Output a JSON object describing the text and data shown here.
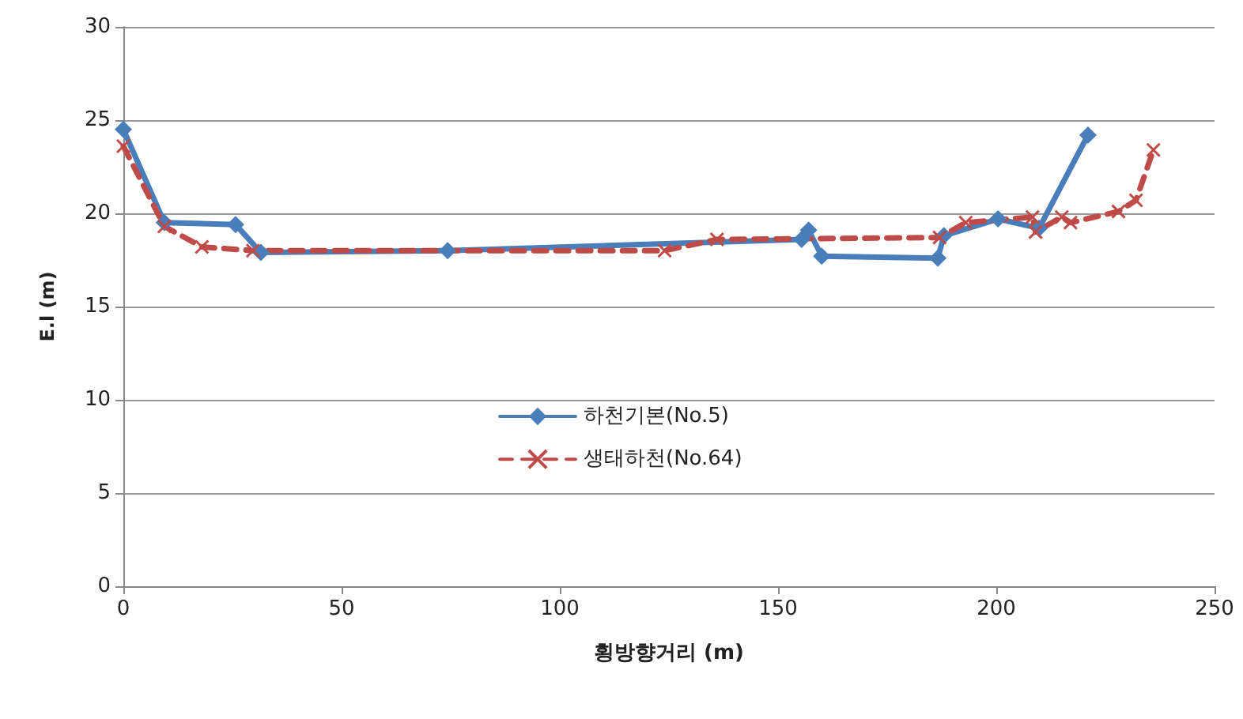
{
  "chart_data": {
    "type": "line",
    "xlabel": "횡방향거리 (m)",
    "ylabel": "E.l (m)",
    "xlim": [
      0,
      250
    ],
    "xticks": [
      0,
      50,
      100,
      150,
      200,
      250
    ],
    "ylim": [
      0,
      30
    ],
    "yticks": [
      0,
      5,
      10,
      15,
      20,
      25,
      30
    ],
    "grid": "y",
    "legend": "center",
    "series": [
      {
        "name": "하천기본(No.5)",
        "color": "#4a7ebb",
        "marker": "diamond",
        "line_style": "solid",
        "x": [
          0,
          9.4,
          25.7,
          31.5,
          74.3,
          155.4,
          157,
          160,
          186.6,
          188,
          200.4,
          209.8,
          221
        ],
        "values": [
          24.5,
          19.5,
          19.4,
          17.9,
          18.0,
          18.6,
          19.1,
          17.7,
          17.6,
          18.8,
          19.7,
          19.2,
          24.2
        ]
      },
      {
        "name": "생태하천(No.64)",
        "color": "#be4b48",
        "marker": "cross",
        "line_style": "dashed",
        "x": [
          0,
          9.4,
          18,
          29.7,
          124,
          136,
          187,
          193,
          208.3,
          209,
          215,
          217,
          228,
          232,
          236
        ],
        "values": [
          23.6,
          19.3,
          18.2,
          18.0,
          18.0,
          18.6,
          18.7,
          19.5,
          19.8,
          19.0,
          19.8,
          19.5,
          20.1,
          20.7,
          23.4
        ]
      }
    ]
  }
}
